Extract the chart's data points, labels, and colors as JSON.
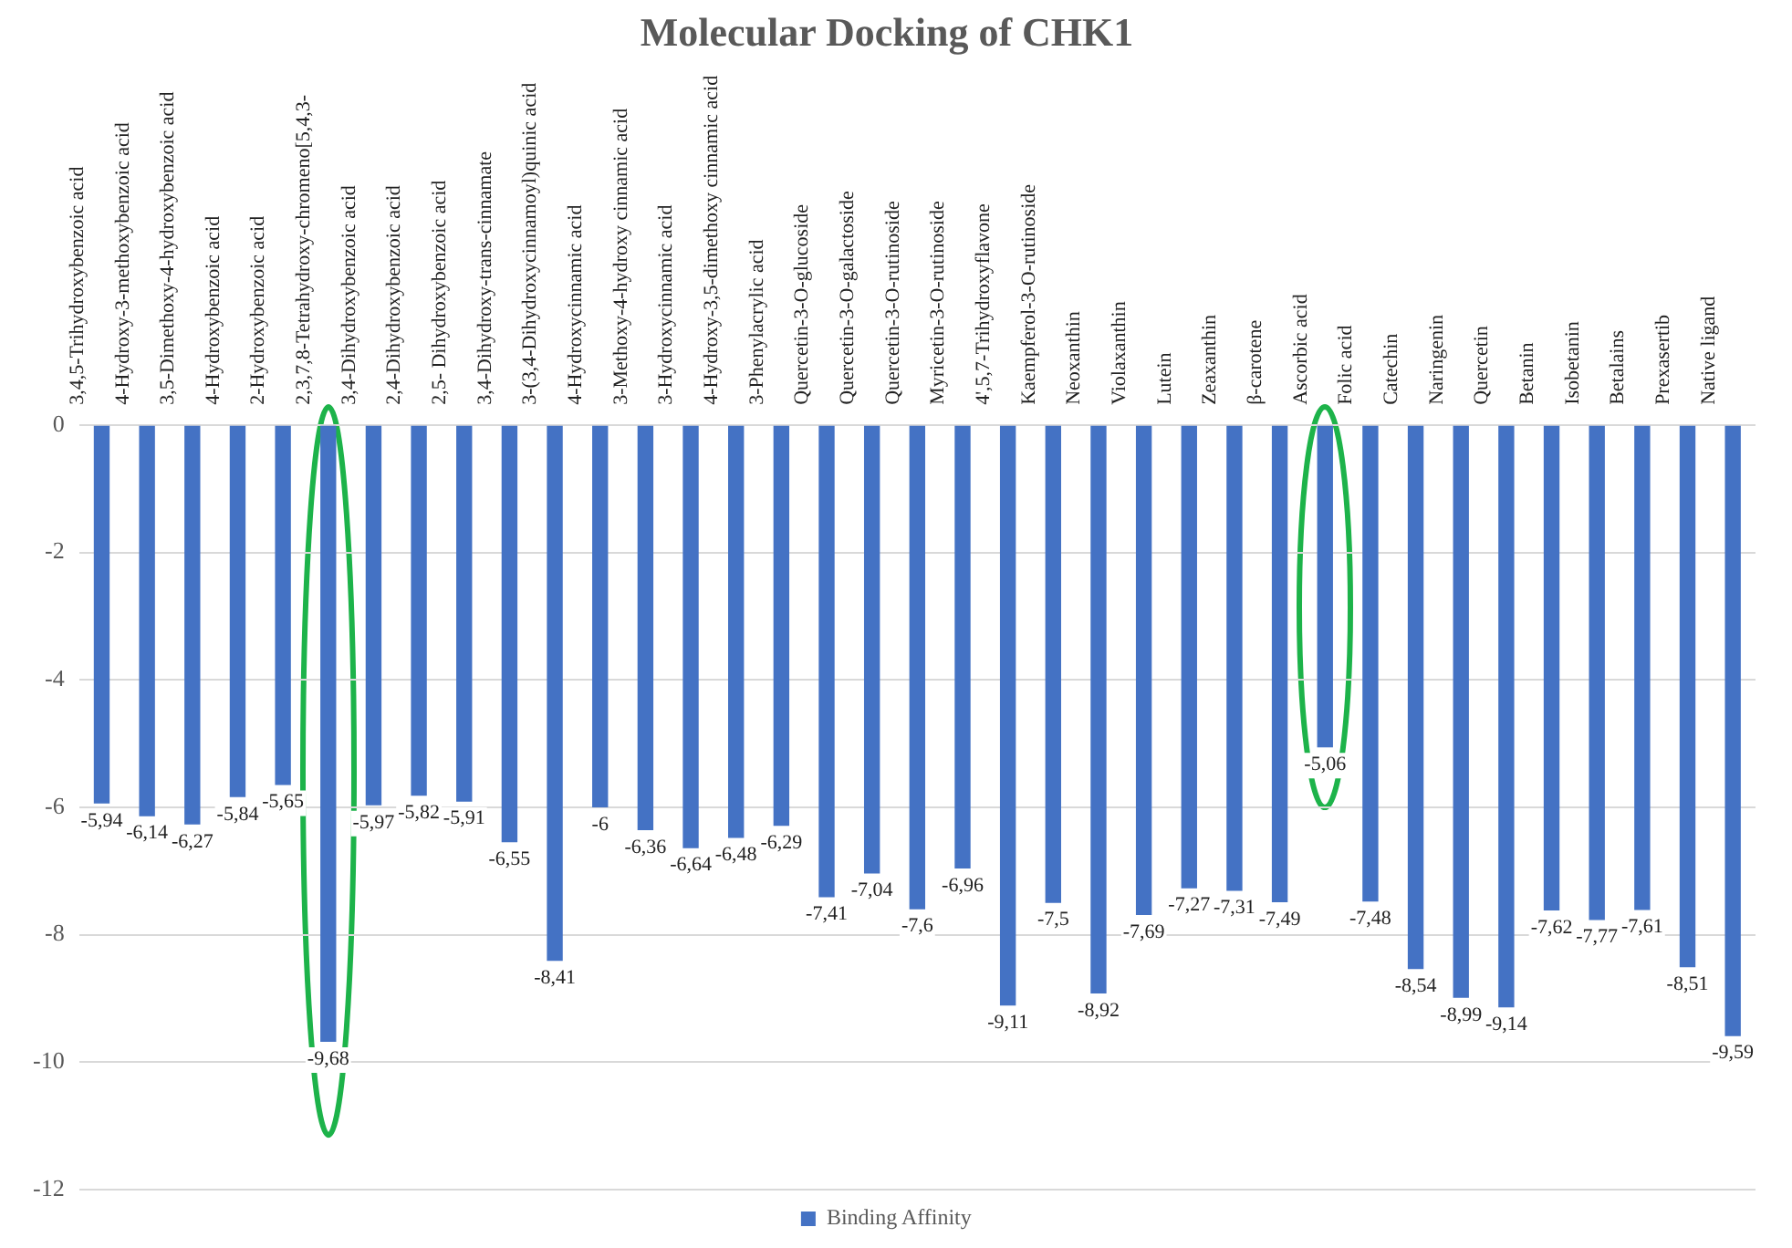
{
  "chart_data": {
    "type": "bar",
    "title": "Molecular Docking of CHK1",
    "categories": [
      "3,4,5-Trihydroxybenzoic acid",
      "4-Hydroxy-3-methoxybenzoic acid",
      "3,5-Dimethoxy-4-hydroxybenzoic acid",
      "4-Hydroxybenzoic acid",
      "2-Hydroxybenzoic acid",
      "2,3,7,8-Tetrahydroxy-chromeno[5,4,3-",
      "3,4-Dihydroxybenzoic acid",
      "2,4-Dihydroxybenzoic acid",
      "2,5- Dihydroxybenzoic acid",
      "3,4-Dihydroxy-trans-cinnamate",
      "3-(3,4-Dihydroxycinnamoyl)quinic acid",
      "4-Hydroxycinnamic acid",
      "3-Methoxy-4-hydroxy cinnamic acid",
      "3-Hydroxycinnamic acid",
      "4-Hydroxy-3,5-dimethoxy cinnamic acid",
      "3-Phenylacrylic acid",
      "Quercetin-3-O-glucoside",
      "Quercetin-3-O-galactoside",
      "Quercetin-3-O-rutinoside",
      "Myricetin-3-O-rutinoside",
      "4',5,7-Trihydroxyflavone",
      "Kaempferol-3-O-rutinoside",
      "Neoxanthin",
      "Violaxanthin",
      "Lutein",
      "Zeaxanthin",
      "β-carotene",
      "Ascorbic acid",
      "Folic acid",
      "Catechin",
      "Naringenin",
      "Quercetin",
      "Betanin",
      "Isobetanin",
      "Betalains",
      "Prexasertib",
      "Native ligand"
    ],
    "series": [
      {
        "name": "Binding Affinity",
        "color": "#4472c4",
        "values": [
          -5.94,
          -6.14,
          -6.27,
          -5.84,
          -5.65,
          -9.68,
          -5.97,
          -5.82,
          -5.91,
          -6.55,
          -8.41,
          -6,
          -6.36,
          -6.64,
          -6.48,
          -6.29,
          -7.41,
          -7.04,
          -7.6,
          -6.96,
          -9.11,
          -7.5,
          -8.92,
          -7.69,
          -7.27,
          -7.31,
          -7.49,
          -5.06,
          -7.48,
          -8.54,
          -8.99,
          -9.14,
          -7.62,
          -7.77,
          -7.61,
          -8.51,
          -9.59
        ],
        "value_labels": [
          "-5,94",
          "-6,14",
          "-6,27",
          "-5,84",
          "-5,65",
          "-9,68",
          "-5,97",
          "-5,82",
          "-5,91",
          "-6,55",
          "-8,41",
          "-6",
          "-6,36",
          "-6,64",
          "-6,48",
          "-6,29",
          "-7,41",
          "-7,04",
          "-7,6",
          "-6,96",
          "-9,11",
          "-7,5",
          "-8,92",
          "-7,69",
          "-7,27",
          "-7,31",
          "-7,49",
          "-5,06",
          "-7,48",
          "-8,54",
          "-8,99",
          "-9,14",
          "-7,62",
          "-7,77",
          "-7,61",
          "-8,51",
          "-9,59"
        ]
      }
    ],
    "ylim": [
      -12,
      0
    ],
    "yticks": [
      -12,
      -10,
      -8,
      -6,
      -4,
      -2,
      0
    ],
    "grid": "y",
    "legend": "bottom"
  }
}
